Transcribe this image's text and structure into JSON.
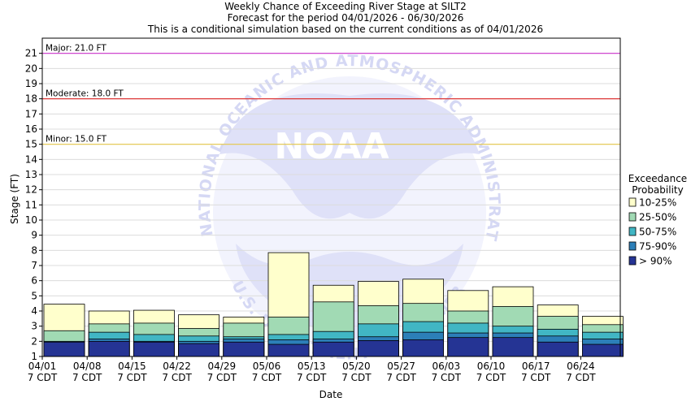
{
  "chart_data": {
    "type": "bar",
    "title": "Weekly Chance of Exceeding River Stage at SILT2",
    "subtitle1": "Forecast for the period 04/01/2026 - 06/30/2026",
    "subtitle2": "This is a conditional simulation based on the current conditions as of 04/01/2026",
    "xlabel": "Date",
    "ylabel": "Stage (FT)",
    "ylim": [
      1,
      22
    ],
    "yticks": [
      1,
      2,
      3,
      4,
      5,
      6,
      7,
      8,
      9,
      10,
      11,
      12,
      13,
      14,
      15,
      16,
      17,
      18,
      19,
      20,
      21
    ],
    "xticks": [
      {
        "date": "04/01",
        "time": "7 CDT"
      },
      {
        "date": "04/08",
        "time": "7 CDT"
      },
      {
        "date": "04/15",
        "time": "7 CDT"
      },
      {
        "date": "04/22",
        "time": "7 CDT"
      },
      {
        "date": "04/29",
        "time": "7 CDT"
      },
      {
        "date": "05/06",
        "time": "7 CDT"
      },
      {
        "date": "05/13",
        "time": "7 CDT"
      },
      {
        "date": "05/20",
        "time": "7 CDT"
      },
      {
        "date": "05/27",
        "time": "7 CDT"
      },
      {
        "date": "06/03",
        "time": "7 CDT"
      },
      {
        "date": "06/10",
        "time": "7 CDT"
      },
      {
        "date": "06/17",
        "time": "7 CDT"
      },
      {
        "date": "06/24",
        "time": "7 CDT"
      }
    ],
    "flood_levels": [
      {
        "label": "Major: 21.0 FT",
        "value": 21.0,
        "color": "#cc33cc"
      },
      {
        "label": "Moderate: 18.0 FT",
        "value": 18.0,
        "color": "#dd2222"
      },
      {
        "label": "Minor: 15.0 FT",
        "value": 15.0,
        "color": "#e6c84a"
      }
    ],
    "legend_title": [
      "Exceedance",
      "Probability"
    ],
    "series": [
      {
        "name": "10-25%",
        "color": "#ffffcc",
        "tops": [
          4.45,
          4.0,
          4.05,
          3.75,
          3.6,
          7.85,
          5.7,
          5.95,
          6.1,
          5.35,
          5.6,
          4.4,
          3.65
        ]
      },
      {
        "name": "25-50%",
        "color": "#a1dab4",
        "tops": [
          2.7,
          3.15,
          3.2,
          2.85,
          3.2,
          3.6,
          4.6,
          4.35,
          4.5,
          4.0,
          4.3,
          3.65,
          3.1
        ]
      },
      {
        "name": "50-75%",
        "color": "#41b6c4",
        "tops": [
          2.0,
          2.6,
          2.45,
          2.35,
          2.3,
          2.45,
          2.65,
          3.15,
          3.3,
          3.2,
          3.0,
          2.8,
          2.6
        ]
      },
      {
        "name": "75-90%",
        "color": "#2c7fb8",
        "tops": [
          1.95,
          2.15,
          2.0,
          2.0,
          2.15,
          2.1,
          2.15,
          2.3,
          2.6,
          2.55,
          2.55,
          2.35,
          2.15
        ]
      },
      {
        "name": "> 90%",
        "color": "#253494",
        "tops": [
          1.95,
          2.0,
          1.95,
          1.85,
          1.95,
          1.8,
          1.95,
          2.05,
          2.1,
          2.25,
          2.25,
          1.95,
          1.8
        ]
      }
    ],
    "watermark": {
      "text": "NATIONAL OCEANIC AND ATMOSPHERIC ADMINISTRATION",
      "logo": "NOAA",
      "bottom": "U.S. DEPARTMENT OF COMMERCE"
    }
  }
}
